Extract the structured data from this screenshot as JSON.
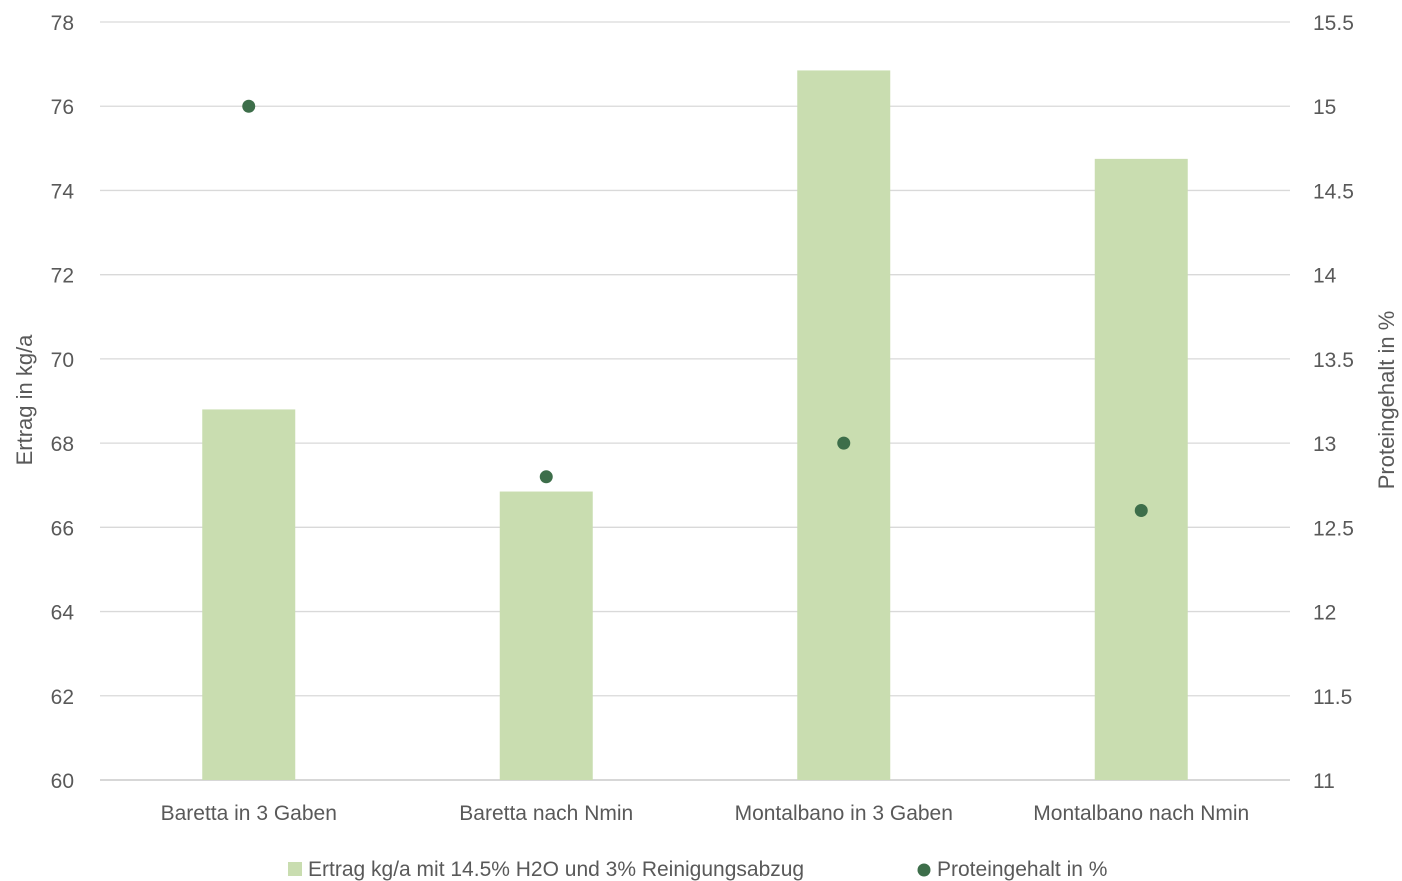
{
  "chart_data": {
    "type": "bar",
    "categories": [
      "Baretta in 3 Gaben",
      "Baretta nach Nmin",
      "Montalbano in 3 Gaben",
      "Montalbano nach Nmin"
    ],
    "ylabel": "Ertrag in kg/a",
    "y2label": "Proteingehalt in %",
    "ylim": [
      60,
      78
    ],
    "y2lim": [
      11,
      15.5
    ],
    "yticks": [
      "60",
      "62",
      "64",
      "66",
      "68",
      "70",
      "72",
      "74",
      "76",
      "78"
    ],
    "y2ticks": [
      "11",
      "11.5",
      "12",
      "12.5",
      "13",
      "13.5",
      "14",
      "14.5",
      "15",
      "15.5"
    ],
    "grid": true,
    "legend_position": "bottom",
    "series": [
      {
        "name": "Ertrag kg/a mit 14.5% H2O und 3% Reinigungsabzug",
        "type": "bar",
        "axis": "left",
        "color": "#c9ddb0",
        "values": [
          68.8,
          66.85,
          76.85,
          74.75
        ]
      },
      {
        "name": "Proteingehalt in %",
        "type": "scatter",
        "axis": "right",
        "color": "#3d6e4a",
        "values": [
          15.0,
          12.8,
          13.0,
          12.6
        ]
      }
    ]
  }
}
